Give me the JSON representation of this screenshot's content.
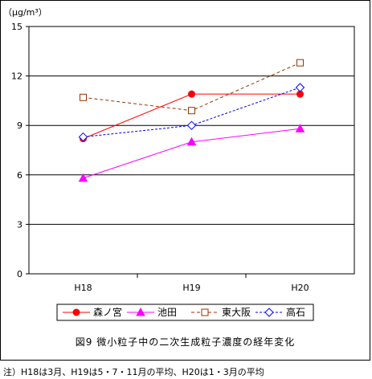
{
  "chart_data": {
    "type": "line",
    "unit_label": "（μg/m³）",
    "categories": [
      "H18",
      "H19",
      "H20"
    ],
    "ylim": [
      0,
      15
    ],
    "yticks": [
      0,
      3,
      6,
      9,
      12,
      15
    ],
    "grid": true,
    "legend_position": "bottom",
    "series": [
      {
        "name": "森ノ宮",
        "values": [
          8.2,
          10.9,
          10.9
        ],
        "color": "#ff0000",
        "dash": "solid",
        "marker": "circle"
      },
      {
        "name": "池田",
        "values": [
          5.8,
          8.0,
          8.8
        ],
        "color": "#ff00ff",
        "dash": "solid",
        "marker": "triangle"
      },
      {
        "name": "東大阪",
        "values": [
          10.7,
          9.9,
          12.8
        ],
        "color": "#993300",
        "dash": "dashed",
        "marker": "square"
      },
      {
        "name": "高石",
        "values": [
          8.3,
          9.0,
          11.3
        ],
        "color": "#0000ff",
        "dash": "dotted",
        "marker": "diamond"
      }
    ]
  },
  "caption": "図9  微小粒子中の二次生成粒子濃度の経年変化",
  "footnote": "注）H18は3月、H19は5・7・11月の平均、H20は1・3月の平均"
}
